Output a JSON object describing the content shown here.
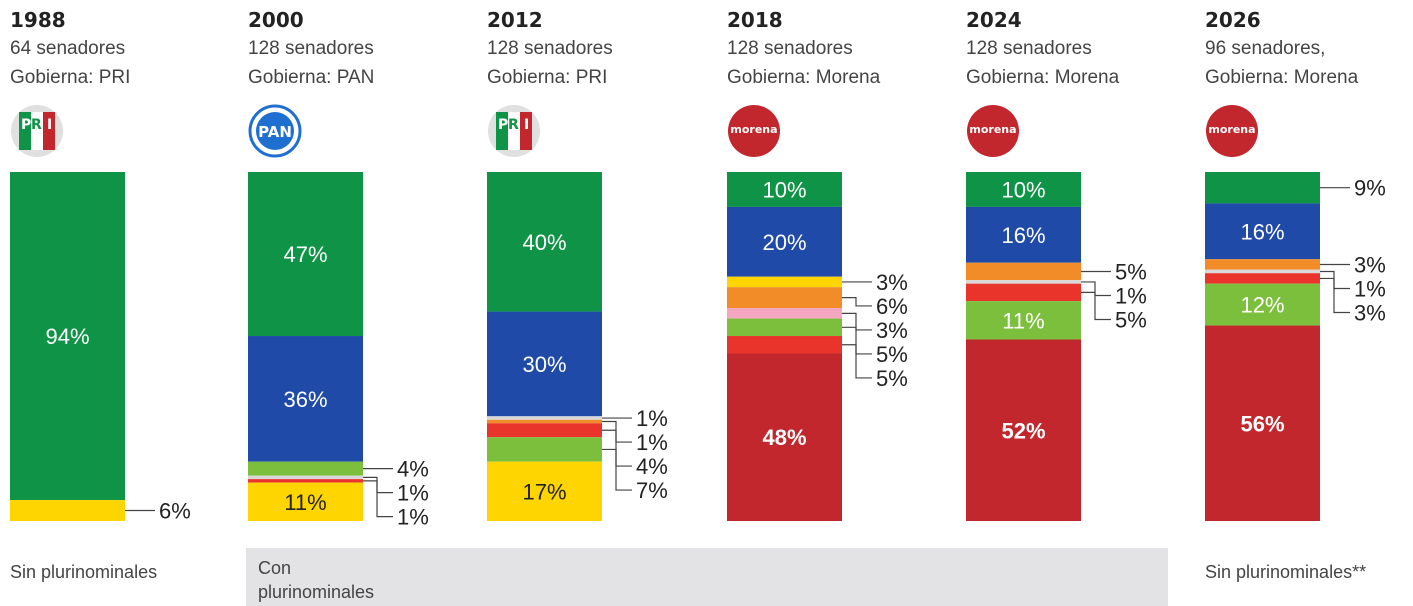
{
  "colors": {
    "morena": "#c1272d",
    "pan": "#1f4aa8",
    "pri": "#0f9447",
    "prd": "#ffd500",
    "pvem": "#7cbf3c",
    "pt": "#e8342b",
    "mc": "#f28c28",
    "pes": "#f4a6c1",
    "other": "#d9d9d9"
  },
  "notes": {
    "sin": "Sin plurinominales",
    "con": "Con plurinominales",
    "sin2": "Sin plurinominales**"
  },
  "chart_data": {
    "type": "bar",
    "stacked": true,
    "categories": [
      "1988",
      "2000",
      "2012",
      "2018",
      "2024",
      "2026"
    ],
    "panels": [
      {
        "year": "1988",
        "seats": "64 senadores",
        "gov": "Gobierna: PRI",
        "logo": "PRI",
        "segments": [
          {
            "party": "pri",
            "value": 94,
            "label": "94%"
          },
          {
            "party": "prd",
            "value": 6,
            "label": "6%"
          }
        ]
      },
      {
        "year": "2000",
        "seats": "128 senadores",
        "gov": "Gobierna: PAN",
        "logo": "PAN",
        "segments": [
          {
            "party": "pri",
            "value": 47,
            "label": "47%"
          },
          {
            "party": "pan",
            "value": 36,
            "label": "36%"
          },
          {
            "party": "pvem",
            "value": 4,
            "label": "4%"
          },
          {
            "party": "other",
            "value": 1,
            "label": "1%"
          },
          {
            "party": "pt",
            "value": 1,
            "label": "1%"
          },
          {
            "party": "prd",
            "value": 11,
            "label": "11%"
          }
        ]
      },
      {
        "year": "2012",
        "seats": "128 senadores",
        "gov": "Gobierna: PRI",
        "logo": "PRI",
        "segments": [
          {
            "party": "pri",
            "value": 40,
            "label": "40%"
          },
          {
            "party": "pan",
            "value": 30,
            "label": "30%"
          },
          {
            "party": "other",
            "value": 1,
            "label": "1%"
          },
          {
            "party": "mc",
            "value": 1,
            "label": "1%"
          },
          {
            "party": "pt",
            "value": 4,
            "label": "4%"
          },
          {
            "party": "pvem",
            "value": 7,
            "label": "7%"
          },
          {
            "party": "prd",
            "value": 17,
            "label": "17%"
          }
        ]
      },
      {
        "year": "2018",
        "seats": "128 senadores",
        "gov": "Gobierna: Morena",
        "logo": "morena",
        "segments": [
          {
            "party": "pri",
            "value": 10,
            "label": "10%"
          },
          {
            "party": "pan",
            "value": 20,
            "label": "20%"
          },
          {
            "party": "prd",
            "value": 3,
            "label": "3%"
          },
          {
            "party": "mc",
            "value": 6,
            "label": "6%"
          },
          {
            "party": "pes",
            "value": 3,
            "label": "3%"
          },
          {
            "party": "pvem",
            "value": 5,
            "label": "5%"
          },
          {
            "party": "pt",
            "value": 5,
            "label": "5%"
          },
          {
            "party": "morena",
            "value": 48,
            "label": "48%"
          }
        ]
      },
      {
        "year": "2024",
        "seats": "128 senadores",
        "gov": "Gobierna: Morena",
        "logo": "morena",
        "segments": [
          {
            "party": "pri",
            "value": 10,
            "label": "10%"
          },
          {
            "party": "pan",
            "value": 16,
            "label": "16%"
          },
          {
            "party": "mc",
            "value": 5,
            "label": "5%"
          },
          {
            "party": "other",
            "value": 1,
            "label": "1%"
          },
          {
            "party": "pt",
            "value": 5,
            "label": "5%"
          },
          {
            "party": "pvem",
            "value": 11,
            "label": "11%"
          },
          {
            "party": "morena",
            "value": 52,
            "label": "52%"
          }
        ]
      },
      {
        "year": "2026",
        "seats": "96 senadores,",
        "gov": "Gobierna: Morena",
        "logo": "morena",
        "segments": [
          {
            "party": "pri",
            "value": 9,
            "label": "9%"
          },
          {
            "party": "pan",
            "value": 16,
            "label": "16%"
          },
          {
            "party": "mc",
            "value": 3,
            "label": "3%"
          },
          {
            "party": "other",
            "value": 1,
            "label": "1%"
          },
          {
            "party": "pt",
            "value": 3,
            "label": "3%"
          },
          {
            "party": "pvem",
            "value": 12,
            "label": "12%"
          },
          {
            "party": "morena",
            "value": 56,
            "label": "56%"
          }
        ]
      }
    ]
  }
}
